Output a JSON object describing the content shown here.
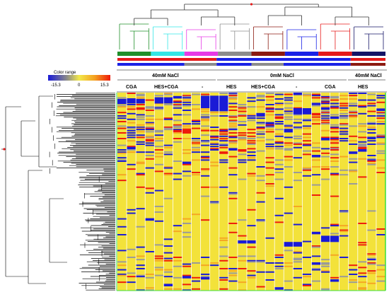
{
  "chart_data": {
    "type": "heatmap",
    "title": "",
    "xlabel": "",
    "ylabel": "",
    "color_scale": {
      "title": "Color range",
      "min": -15.3,
      "mid": 0,
      "max": 15.3,
      "tick_labels": [
        "-15.3",
        "0",
        "15.3"
      ],
      "colors": [
        "#1a1ad6",
        "#8a8a8a",
        "#f2e84a",
        "#ee1a0a"
      ]
    },
    "column_groups": [
      {
        "label": "40mM NaCl",
        "sub": [
          "CGA",
          "HES+CGA",
          "-"
        ],
        "columns": 12
      },
      {
        "label": "0mM NaCl",
        "sub": [
          "HES",
          "HES+CGA",
          "-",
          "CGA"
        ],
        "columns": 14
      },
      {
        "label": "40mM NaCl",
        "sub": [
          "HES"
        ],
        "columns": 3
      }
    ],
    "treatment_labels": [
      "CGA",
      "HES+CGA",
      "-",
      "HES",
      "HES+CGA",
      "-",
      "CGA",
      "HES"
    ],
    "treatment_colors": [
      "#1f8f2a",
      "#33e6e6",
      "#e63ae6",
      "#8c8c8c",
      "#8b1a10",
      "#1a22e6",
      "#e61a1a",
      "#141466"
    ],
    "salt_colors": [
      "#e61a1a",
      "#1a22e6",
      "#e61a1a"
    ],
    "cluster_colors": [
      "#1a22e6",
      "#8c8c8c",
      "#8b1a10"
    ],
    "n_columns": 29,
    "n_rows": 175,
    "cell_colors": {
      "high": "#ee1a0a",
      "mid_high": "#f5a623",
      "background": "#f3e23a",
      "neutral": "#9a9a9a",
      "low": "#1a1ad6",
      "divider": "#ffffff"
    }
  }
}
